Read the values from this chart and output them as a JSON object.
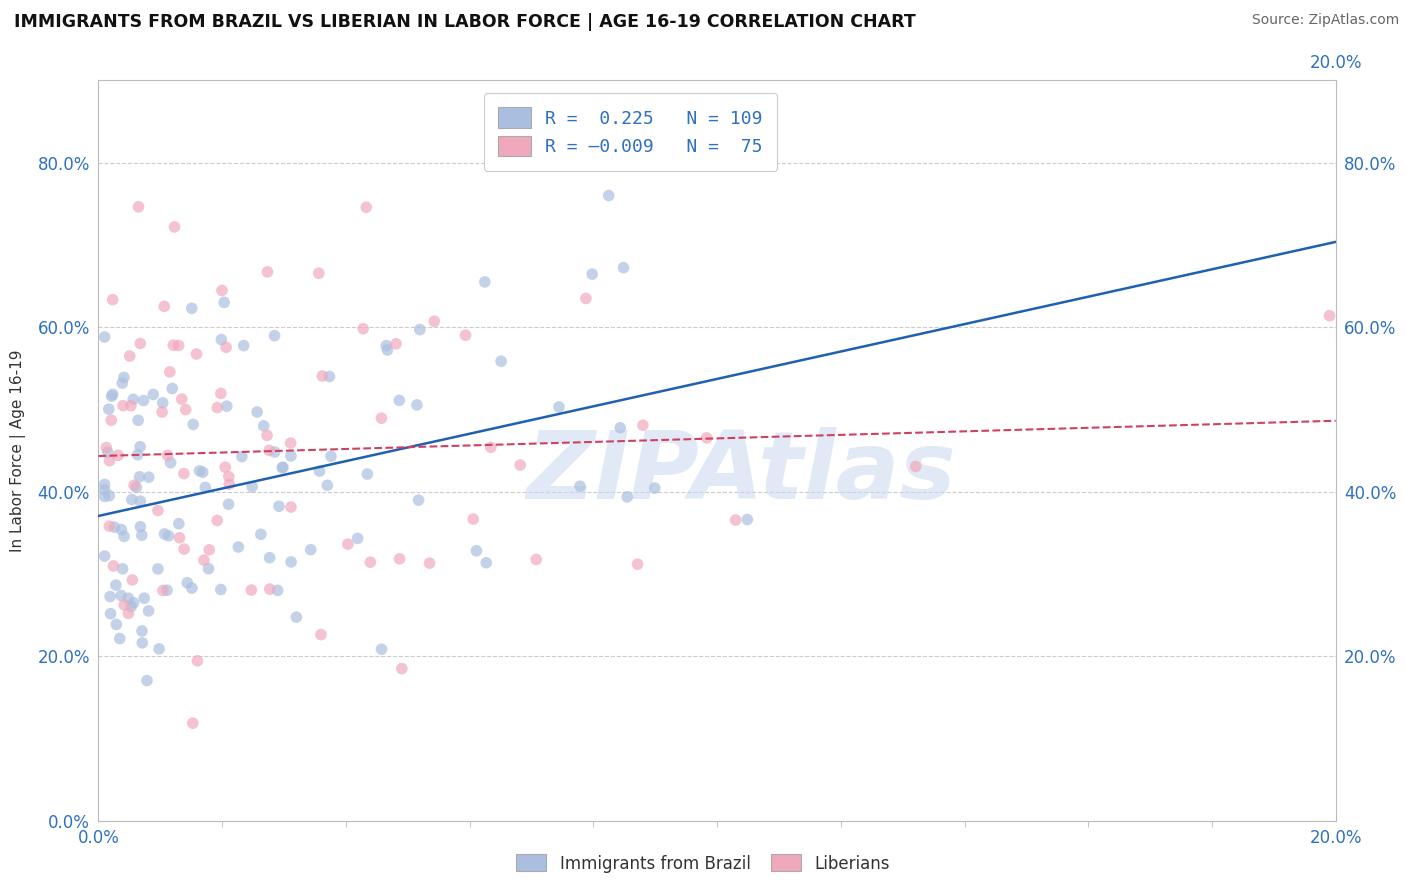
{
  "title": "IMMIGRANTS FROM BRAZIL VS LIBERIAN IN LABOR FORCE | AGE 16-19 CORRELATION CHART",
  "source": "Source: ZipAtlas.com",
  "ylabel": "In Labor Force | Age 16-19",
  "xlim": [
    0.0,
    0.2
  ],
  "ylim": [
    0.0,
    0.9
  ],
  "yticks": [
    0.0,
    0.2,
    0.4,
    0.6,
    0.8
  ],
  "color_brazil": "#aabfdf",
  "color_liberian": "#f0a8bc",
  "trendline_brazil": "#2060b0",
  "trendline_liberian": "#d04060",
  "watermark": "ZIPAtlas",
  "watermark_color": "#c8d8ee",
  "brazil_R": 0.225,
  "brazil_N": 109,
  "liberian_R": -0.009,
  "liberian_N": 75,
  "grid_color": "#cccccc",
  "spine_color": "#bbbbbb",
  "tick_label_color": "#3070c0",
  "title_color": "#111111",
  "source_color": "#666666"
}
